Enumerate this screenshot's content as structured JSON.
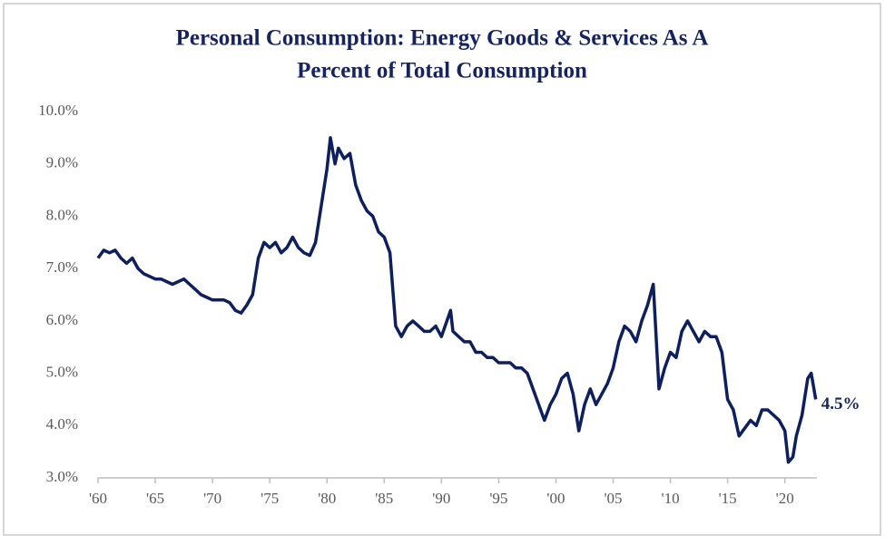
{
  "chart_data": {
    "type": "line",
    "title": "Personal Consumption: Energy Goods & Services As A",
    "subtitle": "Percent of Total Consumption",
    "color": "#0e1f5e",
    "x": [
      1960,
      1960.5,
      1961,
      1961.5,
      1962,
      1962.5,
      1963,
      1963.5,
      1964,
      1964.5,
      1965,
      1965.5,
      1966,
      1966.5,
      1967,
      1967.5,
      1968,
      1968.5,
      1969,
      1969.5,
      1970,
      1970.5,
      1971,
      1971.5,
      1972,
      1972.5,
      1973,
      1973.5,
      1974,
      1974.5,
      1975,
      1975.5,
      1976,
      1976.5,
      1977,
      1977.5,
      1978,
      1978.5,
      1979,
      1979.5,
      1980,
      1980.3,
      1980.7,
      1981,
      1981.5,
      1982,
      1982.5,
      1983,
      1983.5,
      1984,
      1984.5,
      1985,
      1985.5,
      1986,
      1986.5,
      1987,
      1987.5,
      1988,
      1988.5,
      1989,
      1989.5,
      1990,
      1990.8,
      1991,
      1991.5,
      1992,
      1992.5,
      1993,
      1993.5,
      1994,
      1994.5,
      1995,
      1995.5,
      1996,
      1996.5,
      1997,
      1997.5,
      1998,
      1998.5,
      1999,
      1999.5,
      2000,
      2000.5,
      2001,
      2001.5,
      2002,
      2002.5,
      2003,
      2003.5,
      2004,
      2004.5,
      2005,
      2005.5,
      2006,
      2006.5,
      2007,
      2007.5,
      2008,
      2008.5,
      2009,
      2009.5,
      2010,
      2010.5,
      2011,
      2011.5,
      2012,
      2012.5,
      2013,
      2013.5,
      2014,
      2014.5,
      2015,
      2015.5,
      2016,
      2016.5,
      2017,
      2017.5,
      2018,
      2018.5,
      2019,
      2019.5,
      2020,
      2020.3,
      2020.7,
      2021,
      2021.5,
      2022,
      2022.3,
      2022.7
    ],
    "values": [
      7.2,
      7.35,
      7.3,
      7.35,
      7.2,
      7.1,
      7.2,
      7.0,
      6.9,
      6.85,
      6.8,
      6.8,
      6.75,
      6.7,
      6.75,
      6.8,
      6.7,
      6.6,
      6.5,
      6.45,
      6.4,
      6.4,
      6.4,
      6.35,
      6.2,
      6.15,
      6.3,
      6.5,
      7.2,
      7.5,
      7.4,
      7.5,
      7.3,
      7.4,
      7.6,
      7.4,
      7.3,
      7.25,
      7.5,
      8.2,
      8.9,
      9.5,
      9.0,
      9.3,
      9.1,
      9.2,
      8.6,
      8.3,
      8.1,
      8.0,
      7.7,
      7.6,
      7.3,
      5.9,
      5.7,
      5.9,
      6.0,
      5.9,
      5.8,
      5.8,
      5.9,
      5.7,
      6.2,
      5.8,
      5.7,
      5.6,
      5.6,
      5.4,
      5.4,
      5.3,
      5.3,
      5.2,
      5.2,
      5.2,
      5.1,
      5.1,
      5.0,
      4.7,
      4.4,
      4.1,
      4.4,
      4.6,
      4.9,
      5.0,
      4.6,
      3.9,
      4.4,
      4.7,
      4.4,
      4.6,
      4.8,
      5.1,
      5.6,
      5.9,
      5.8,
      5.6,
      6.0,
      6.3,
      6.7,
      4.7,
      5.1,
      5.4,
      5.3,
      5.8,
      6.0,
      5.8,
      5.6,
      5.8,
      5.7,
      5.7,
      5.4,
      4.5,
      4.3,
      3.8,
      3.95,
      4.1,
      4.0,
      4.3,
      4.3,
      4.2,
      4.1,
      3.9,
      3.3,
      3.4,
      3.8,
      4.2,
      4.9,
      5.0,
      4.5
    ],
    "end_label": "4.5%",
    "xlim": [
      1960,
      2022.8
    ],
    "xticks": [
      {
        "value": 1960,
        "label": "'60"
      },
      {
        "value": 1965,
        "label": "'65"
      },
      {
        "value": 1970,
        "label": "'70"
      },
      {
        "value": 1975,
        "label": "'75"
      },
      {
        "value": 1980,
        "label": "'80"
      },
      {
        "value": 1985,
        "label": "'85"
      },
      {
        "value": 1990,
        "label": "'90"
      },
      {
        "value": 1995,
        "label": "'95"
      },
      {
        "value": 2000,
        "label": "'00"
      },
      {
        "value": 2005,
        "label": "'05"
      },
      {
        "value": 2010,
        "label": "'10"
      },
      {
        "value": 2015,
        "label": "'15"
      },
      {
        "value": 2020,
        "label": "'20"
      }
    ],
    "ylim": [
      3,
      10
    ],
    "yticks": [
      {
        "value": 3,
        "label": "3.0%"
      },
      {
        "value": 4,
        "label": "4.0%"
      },
      {
        "value": 5,
        "label": "5.0%"
      },
      {
        "value": 6,
        "label": "6.0%"
      },
      {
        "value": 7,
        "label": "7.0%"
      },
      {
        "value": 8,
        "label": "8.0%"
      },
      {
        "value": 9,
        "label": "9.0%"
      },
      {
        "value": 10,
        "label": "10.0%"
      }
    ],
    "grid": false
  }
}
